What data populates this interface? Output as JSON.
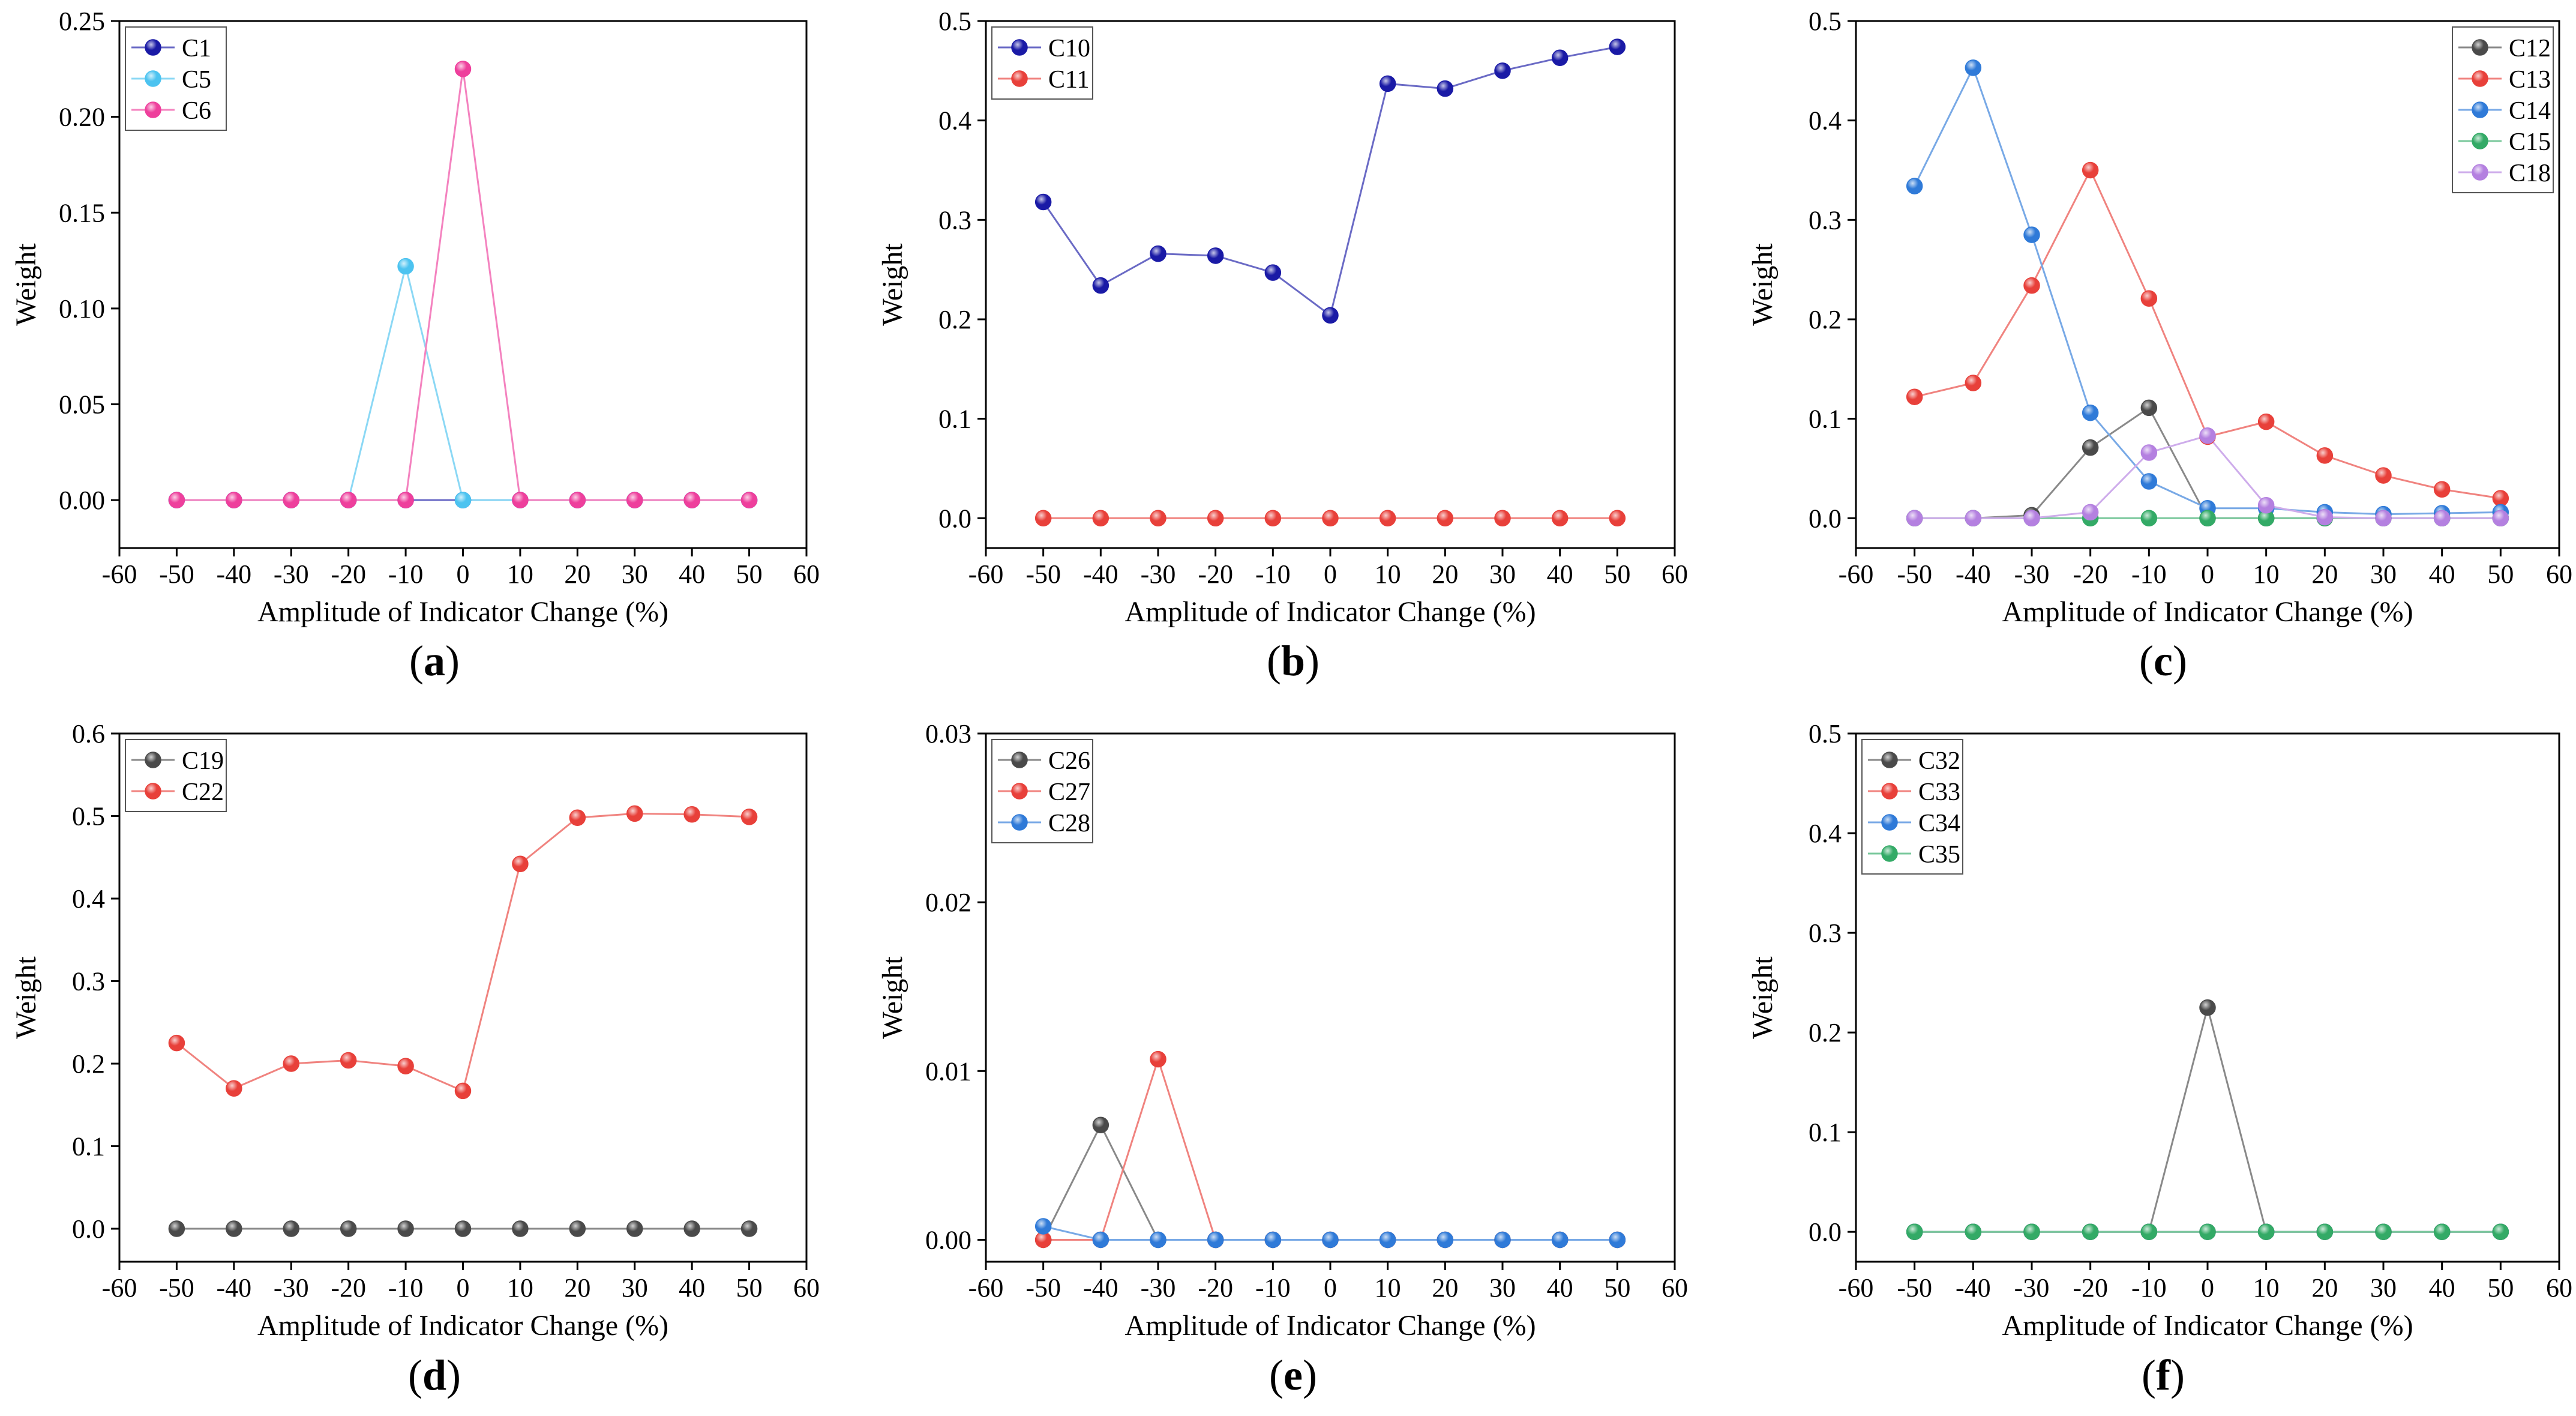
{
  "figure": {
    "panels": [
      "(a)",
      "(b)",
      "(c)",
      "(d)",
      "(e)",
      "(f)"
    ]
  },
  "chart_data": [
    {
      "type": "line",
      "panel_label": "(a)",
      "xlabel": "Amplitude of Indicator Change (%)",
      "ylabel": "Weight",
      "xlim": [
        -60,
        60
      ],
      "ylim": [
        -0.025,
        0.25
      ],
      "xticks": [
        -60,
        -50,
        -40,
        -30,
        -20,
        -10,
        0,
        10,
        20,
        30,
        40,
        50,
        60
      ],
      "yticks": [
        0,
        0.05,
        0.1,
        0.15,
        0.2,
        0.25
      ],
      "ytick_labels": [
        "0.00",
        "0.05",
        "0.10",
        "0.15",
        "0.20",
        "0.25"
      ],
      "legend_position": "top-left",
      "x": [
        -50,
        -40,
        -30,
        -20,
        -10,
        0,
        10,
        20,
        30,
        40,
        50
      ],
      "series": [
        {
          "name": "C1",
          "color": "#1a1aa6",
          "values": [
            0,
            0,
            0,
            0,
            0,
            0,
            0,
            0,
            0,
            0,
            0
          ]
        },
        {
          "name": "C5",
          "color": "#4cc3f0",
          "values": [
            0,
            0,
            0,
            0,
            0.122,
            0,
            0,
            0,
            0,
            0,
            0
          ]
        },
        {
          "name": "C6",
          "color": "#ee3f9c",
          "values": [
            0,
            0,
            0,
            0,
            0,
            0.225,
            0,
            0,
            0,
            0,
            0
          ]
        }
      ]
    },
    {
      "type": "line",
      "panel_label": "(b)",
      "xlabel": "Amplitude of Indicator Change (%)",
      "ylabel": "Weight",
      "xlim": [
        -60,
        60
      ],
      "ylim": [
        -0.03,
        0.5
      ],
      "xticks": [
        -60,
        -50,
        -40,
        -30,
        -20,
        -10,
        0,
        10,
        20,
        30,
        40,
        50,
        60
      ],
      "yticks": [
        0,
        0.1,
        0.2,
        0.3,
        0.4,
        0.5
      ],
      "ytick_labels": [
        "0.0",
        "0.1",
        "0.2",
        "0.3",
        "0.4",
        "0.5"
      ],
      "legend_position": "top-left",
      "x": [
        -50,
        -40,
        -30,
        -20,
        -10,
        0,
        10,
        20,
        30,
        40,
        50
      ],
      "series": [
        {
          "name": "C10",
          "color": "#1a1aa6",
          "values": [
            0.318,
            0.234,
            0.266,
            0.264,
            0.247,
            0.204,
            0.437,
            0.432,
            0.45,
            0.463,
            0.474
          ]
        },
        {
          "name": "C11",
          "color": "#e8403a",
          "values": [
            0,
            0,
            0,
            0,
            0,
            0,
            0,
            0,
            0,
            0,
            0
          ]
        }
      ]
    },
    {
      "type": "line",
      "panel_label": "(c)",
      "xlabel": "Amplitude of Indicator Change (%)",
      "ylabel": "Weight",
      "xlim": [
        -60,
        60
      ],
      "ylim": [
        -0.03,
        0.5
      ],
      "xticks": [
        -60,
        -50,
        -40,
        -30,
        -20,
        -10,
        0,
        10,
        20,
        30,
        40,
        50,
        60
      ],
      "yticks": [
        0,
        0.1,
        0.2,
        0.3,
        0.4,
        0.5
      ],
      "ytick_labels": [
        "0.0",
        "0.1",
        "0.2",
        "0.3",
        "0.4",
        "0.5"
      ],
      "legend_position": "top-right",
      "x": [
        -50,
        -40,
        -30,
        -20,
        -10,
        0,
        10,
        20,
        30,
        40,
        50
      ],
      "series": [
        {
          "name": "C12",
          "color": "#4a4a4a",
          "values": [
            0,
            0,
            0.003,
            0.071,
            0.111,
            0,
            0,
            0,
            0,
            0,
            0
          ]
        },
        {
          "name": "C13",
          "color": "#e8403a",
          "values": [
            0.122,
            0.136,
            0.234,
            0.35,
            0.221,
            0.082,
            0.097,
            0.063,
            0.043,
            0.029,
            0.02
          ]
        },
        {
          "name": "C14",
          "color": "#2f7ad8",
          "values": [
            0.334,
            0.453,
            0.285,
            0.106,
            0.037,
            0.01,
            0.01,
            0.006,
            0.004,
            0.005,
            0.006
          ]
        },
        {
          "name": "C15",
          "color": "#33aa66",
          "values": [
            0,
            0,
            0,
            0,
            0,
            0,
            0,
            0,
            0,
            0,
            0
          ]
        },
        {
          "name": "C18",
          "color": "#b480e0",
          "values": [
            0,
            0,
            0,
            0.006,
            0.066,
            0.083,
            0.013,
            0.001,
            0,
            0,
            0
          ]
        }
      ]
    },
    {
      "type": "line",
      "panel_label": "(d)",
      "xlabel": "Amplitude of Indicator Change (%)",
      "ylabel": "Weight",
      "xlim": [
        -60,
        60
      ],
      "ylim": [
        -0.04,
        0.6
      ],
      "xticks": [
        -60,
        -50,
        -40,
        -30,
        -20,
        -10,
        0,
        10,
        20,
        30,
        40,
        50,
        60
      ],
      "yticks": [
        0,
        0.1,
        0.2,
        0.3,
        0.4,
        0.5,
        0.6
      ],
      "ytick_labels": [
        "0.0",
        "0.1",
        "0.2",
        "0.3",
        "0.4",
        "0.5",
        "0.6"
      ],
      "legend_position": "top-left",
      "x": [
        -50,
        -40,
        -30,
        -20,
        -10,
        0,
        10,
        20,
        30,
        40,
        50
      ],
      "series": [
        {
          "name": "C19",
          "color": "#4a4a4a",
          "values": [
            0,
            0,
            0,
            0,
            0,
            0,
            0,
            0,
            0,
            0,
            0
          ]
        },
        {
          "name": "C22",
          "color": "#e8403a",
          "values": [
            0.225,
            0.17,
            0.2,
            0.204,
            0.197,
            0.167,
            0.442,
            0.498,
            0.503,
            0.502,
            0.499
          ]
        }
      ]
    },
    {
      "type": "line",
      "panel_label": "(e)",
      "xlabel": "Amplitude of Indicator Change (%)",
      "ylabel": "Weight",
      "xlim": [
        -60,
        60
      ],
      "ylim": [
        -0.0013,
        0.03
      ],
      "xticks": [
        -60,
        -50,
        -40,
        -30,
        -20,
        -10,
        0,
        10,
        20,
        30,
        40,
        50,
        60
      ],
      "yticks": [
        0,
        0.01,
        0.02,
        0.03
      ],
      "ytick_labels": [
        "0.00",
        "0.01",
        "0.02",
        "0.03"
      ],
      "legend_position": "top-left",
      "x": [
        -50,
        -40,
        -30,
        -20,
        -10,
        0,
        10,
        20,
        30,
        40,
        50
      ],
      "series": [
        {
          "name": "C26",
          "color": "#4a4a4a",
          "values": [
            0,
            0.0068,
            0,
            0,
            0,
            0,
            0,
            0,
            0,
            0,
            0
          ]
        },
        {
          "name": "C27",
          "color": "#e8403a",
          "values": [
            0,
            0,
            0.0107,
            0,
            0,
            0,
            0,
            0,
            0,
            0,
            0
          ]
        },
        {
          "name": "C28",
          "color": "#2f7ad8",
          "values": [
            0.0008,
            0,
            0,
            0,
            0,
            0,
            0,
            0,
            0,
            0,
            0
          ]
        }
      ]
    },
    {
      "type": "line",
      "panel_label": "(f)",
      "xlabel": "Amplitude of Indicator Change (%)",
      "ylabel": "Weight",
      "xlim": [
        -60,
        60
      ],
      "ylim": [
        -0.03,
        0.5
      ],
      "xticks": [
        -60,
        -50,
        -40,
        -30,
        -20,
        -10,
        0,
        10,
        20,
        30,
        40,
        50,
        60
      ],
      "yticks": [
        0,
        0.1,
        0.2,
        0.3,
        0.4,
        0.5
      ],
      "ytick_labels": [
        "0.0",
        "0.1",
        "0.2",
        "0.3",
        "0.4",
        "0.5"
      ],
      "legend_position": "top-left",
      "x": [
        -50,
        -40,
        -30,
        -20,
        -10,
        0,
        10,
        20,
        30,
        40,
        50
      ],
      "series": [
        {
          "name": "C32",
          "color": "#4a4a4a",
          "values": [
            0,
            0,
            0,
            0,
            0,
            0.225,
            0,
            0,
            0,
            0,
            0
          ]
        },
        {
          "name": "C33",
          "color": "#e8403a",
          "values": [
            0,
            0,
            0,
            0,
            0,
            0,
            0,
            0,
            0,
            0,
            0
          ]
        },
        {
          "name": "C34",
          "color": "#2f7ad8",
          "values": [
            0,
            0,
            0,
            0,
            0,
            0,
            0,
            0,
            0,
            0,
            0
          ]
        },
        {
          "name": "C35",
          "color": "#33aa66",
          "values": [
            0,
            0,
            0,
            0,
            0,
            0,
            0,
            0,
            0,
            0,
            0
          ]
        }
      ]
    }
  ]
}
